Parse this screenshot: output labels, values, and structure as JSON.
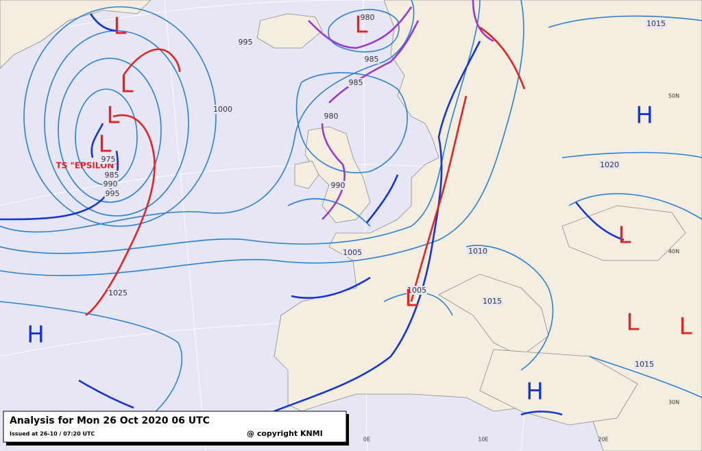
{
  "caption": {
    "title": "Analysis for Mon 26 Oct 2020 06 UTC",
    "issued": "Issued at 26-10 / 07:20 UTC",
    "copyright": "@ copyright KNMI"
  },
  "storm_label": "TS \"EPSILON\"",
  "isobar_labels": [
    "995",
    "980",
    "985",
    "985",
    "1000",
    "980",
    "975",
    "985",
    "990",
    "995",
    "990",
    "1005",
    "1010",
    "1005",
    "1015",
    "1020",
    "1015",
    "1015",
    "1025"
  ],
  "centers": [
    "L",
    "L",
    "L",
    "L",
    "L",
    "L",
    "L",
    "L",
    "L",
    "H",
    "H",
    "H"
  ],
  "graticule_labels": [
    "50N",
    "40N",
    "30N",
    "0E",
    "10E",
    "20E"
  ]
}
